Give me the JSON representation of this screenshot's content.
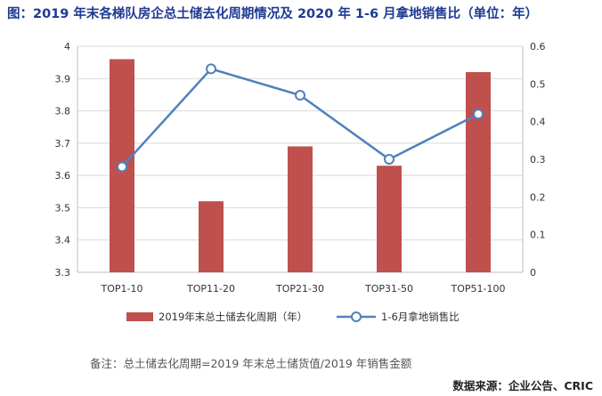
{
  "page": {
    "title": "图：2019 年末各梯队房企总土储去化周期情况及 2020 年 1-6 月拿地销售比（单位：年）",
    "note": "备注：总土储去化周期=2019 年末总土储货值/2019 年销售金额",
    "source": "数据来源：企业公告、CRIC"
  },
  "chart_data": {
    "type": "bar",
    "categories": [
      "TOP1-10",
      "TOP11-20",
      "TOP21-30",
      "TOP31-50",
      "TOP51-100"
    ],
    "series": [
      {
        "name": "2019年末总土储去化周期（年）",
        "type": "bar",
        "axis": "left",
        "color": "#c0504d",
        "values": [
          3.96,
          3.52,
          3.69,
          3.63,
          3.92
        ]
      },
      {
        "name": "1-6月拿地销售比",
        "type": "line",
        "axis": "right",
        "color": "#4f81bd",
        "values": [
          0.28,
          0.54,
          0.47,
          0.3,
          0.42
        ]
      }
    ],
    "ylim": [
      3.3,
      4.0
    ],
    "yticks": [
      "3.3",
      "3.4",
      "3.5",
      "3.6",
      "3.7",
      "3.8",
      "3.9",
      "4"
    ],
    "y2lim": [
      0,
      0.6
    ],
    "y2ticks": [
      "0",
      "0.1",
      "0.2",
      "0.3",
      "0.4",
      "0.5",
      "0.6"
    ],
    "grid": true,
    "legend": "bottom"
  }
}
